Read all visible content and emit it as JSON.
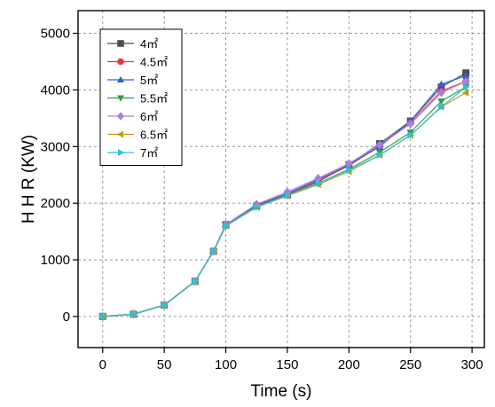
{
  "chart_data": {
    "type": "scatter",
    "xlabel": "Time (s)",
    "ylabel": "H H R (KW)",
    "xlim": [
      -20,
      310
    ],
    "ylim": [
      -550,
      5400
    ],
    "x_ticks": [
      0,
      50,
      100,
      150,
      200,
      250,
      300
    ],
    "x_tick_labels": [
      "0",
      "50",
      "100",
      "150",
      "200",
      "250",
      "300"
    ],
    "y_ticks": [
      0,
      1000,
      2000,
      3000,
      4000,
      5000
    ],
    "y_tick_labels": [
      "0",
      "1000",
      "2000",
      "3000",
      "4000",
      "5000"
    ],
    "grid": true,
    "grid_style": "dashed",
    "legend_position": "top-left",
    "series": [
      {
        "name": "4㎡",
        "color": "#4d4d4d",
        "marker": "square",
        "x": [
          0,
          25,
          50,
          75,
          90,
          100,
          125,
          150,
          175,
          200,
          225,
          250,
          275,
          295
        ],
        "y": [
          0,
          40,
          200,
          620,
          1150,
          1620,
          1950,
          2150,
          2380,
          2680,
          3050,
          3450,
          4050,
          4300
        ]
      },
      {
        "name": "4.5㎡",
        "color": "#e8373f",
        "marker": "circle",
        "x": [
          0,
          25,
          50,
          75,
          90,
          100,
          125,
          150,
          175,
          200,
          225,
          250,
          275,
          295
        ],
        "y": [
          0,
          40,
          200,
          620,
          1150,
          1610,
          1960,
          2160,
          2400,
          2660,
          3020,
          3420,
          3980,
          4150
        ]
      },
      {
        "name": "5㎡",
        "color": "#2d5fd6",
        "marker": "triangle-up",
        "x": [
          0,
          25,
          50,
          75,
          90,
          100,
          125,
          150,
          175,
          200,
          225,
          250,
          275,
          295
        ],
        "y": [
          0,
          40,
          200,
          620,
          1150,
          1620,
          1970,
          2170,
          2420,
          2680,
          3000,
          3450,
          4100,
          4250
        ]
      },
      {
        "name": "5.5㎡",
        "color": "#2f9e49",
        "marker": "triangle-down",
        "x": [
          0,
          25,
          50,
          75,
          90,
          100,
          125,
          150,
          175,
          200,
          225,
          250,
          275,
          295
        ],
        "y": [
          0,
          40,
          200,
          620,
          1150,
          1600,
          1940,
          2140,
          2350,
          2600,
          2900,
          3250,
          3800,
          4050
        ]
      },
      {
        "name": "6㎡",
        "color": "#a77fe0",
        "marker": "diamond",
        "x": [
          0,
          25,
          50,
          75,
          90,
          100,
          125,
          150,
          175,
          200,
          225,
          250,
          275,
          295
        ],
        "y": [
          0,
          40,
          200,
          620,
          1150,
          1620,
          1980,
          2200,
          2440,
          2700,
          3030,
          3400,
          3950,
          4150
        ]
      },
      {
        "name": "6.5㎡",
        "color": "#c39a14",
        "marker": "triangle-left",
        "x": [
          0,
          25,
          50,
          75,
          90,
          100,
          125,
          150,
          175,
          200,
          225,
          250,
          275,
          295
        ],
        "y": [
          0,
          40,
          200,
          620,
          1150,
          1600,
          1930,
          2130,
          2330,
          2560,
          2850,
          3200,
          3700,
          3950
        ]
      },
      {
        "name": "7㎡",
        "color": "#27c4d8",
        "marker": "triangle-right",
        "x": [
          0,
          25,
          50,
          75,
          90,
          100,
          125,
          150,
          175,
          200,
          225,
          250,
          275,
          295
        ],
        "y": [
          0,
          40,
          200,
          620,
          1150,
          1600,
          1930,
          2140,
          2350,
          2580,
          2850,
          3200,
          3700,
          4050
        ]
      }
    ]
  }
}
